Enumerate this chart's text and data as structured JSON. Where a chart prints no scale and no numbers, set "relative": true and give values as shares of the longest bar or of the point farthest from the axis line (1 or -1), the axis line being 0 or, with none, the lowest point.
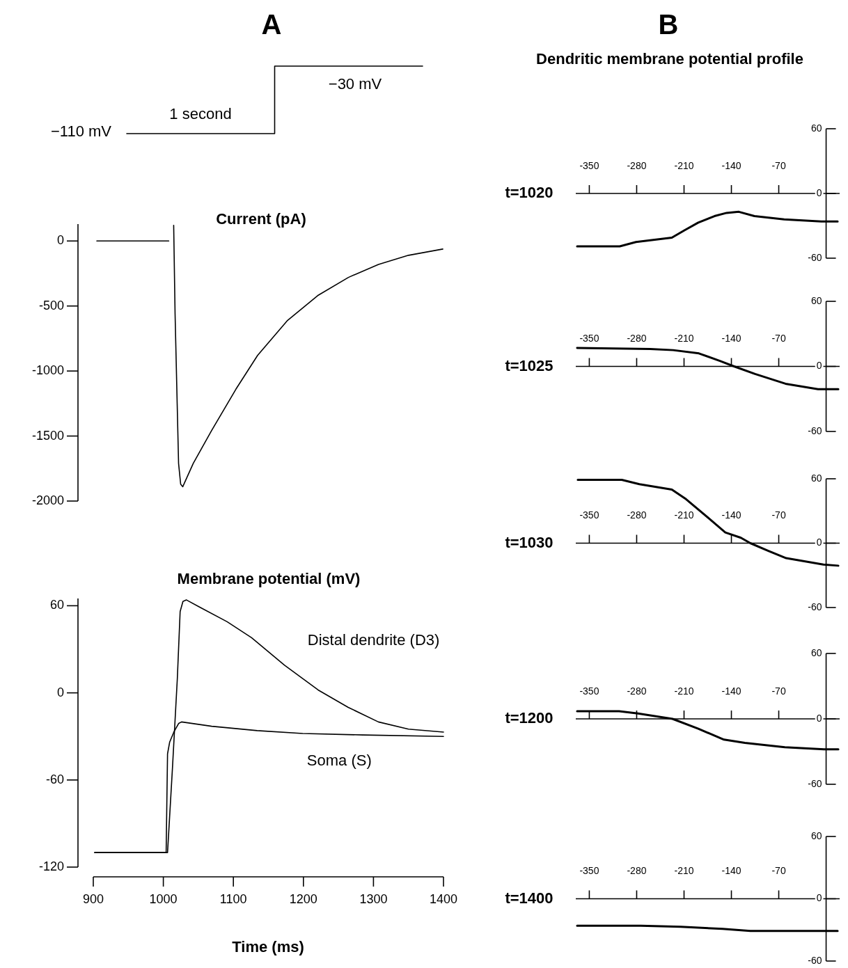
{
  "chart_data": [
    {
      "type": "step",
      "title": "A",
      "categories": [
        null,
        null,
        null
      ],
      "values": [
        0,
        1,
        1
      ],
      "relative": true,
      "color": "#000000",
      "annotations": [
        "−110 mV",
        "1 second",
        "−30 mV"
      ]
    },
    {
      "type": "line",
      "title": "Current (pA)",
      "x": [
        905,
        1008,
        1012,
        1015,
        1017,
        1020,
        1022,
        1025,
        1028,
        1043,
        1069,
        1104,
        1135,
        1178,
        1221,
        1265,
        1308,
        1351,
        1400
      ],
      "values": [
        0,
        0,
        null,
        120,
        -560,
        -1250,
        -1710,
        -1870,
        -1890,
        -1710,
        -1460,
        -1140,
        -880,
        -610,
        -420,
        -280,
        -180,
        -110,
        -62
      ],
      "color": "#000000",
      "xlim": [
        900,
        1400
      ],
      "ylim": [
        -2000,
        130
      ],
      "yticks": [
        0,
        -500,
        -1000,
        -1500,
        -2000
      ],
      "tick_labels": "y"
    },
    {
      "type": "line",
      "title": "Membrane potential (mV)",
      "xlabel": "Time (ms)",
      "xlim": [
        900,
        1400
      ],
      "xticks": [
        900,
        1000,
        1100,
        1200,
        1300,
        1400
      ],
      "ylim": [
        -120,
        65
      ],
      "yticks": [
        60,
        0,
        -60,
        -120
      ],
      "series": [
        {
          "name": "Distal dendrite (D3)",
          "color": "#000000",
          "x": [
            902,
            1004,
            1006,
            1013,
            1020,
            1024,
            1028,
            1033,
            1052,
            1091,
            1126,
            1173,
            1221,
            1264,
            1307,
            1350,
            1400
          ],
          "values": [
            -110,
            -110,
            -110,
            -52,
            10,
            56,
            63,
            64,
            59,
            49,
            38,
            19,
            2,
            -10,
            -20,
            -25,
            -27
          ]
        },
        {
          "name": "Soma (S)",
          "color": "#000000",
          "x": [
            902,
            1004,
            1006,
            1009,
            1015,
            1022,
            1026,
            1069,
            1134,
            1199,
            1285,
            1400
          ],
          "values": [
            -110,
            -110,
            -42,
            -34,
            -27,
            -21,
            -20,
            -23,
            -26,
            -28,
            -29,
            -30
          ]
        }
      ]
    },
    {
      "type": "line",
      "title": "B",
      "subtitle": "Dendritic membrane potential profile",
      "ylabel": "t=1020",
      "x": [
        -368,
        -305,
        -281,
        -228,
        -209,
        -189,
        -165,
        -147,
        -129,
        -106,
        -62,
        -7,
        17
      ],
      "values": [
        -49,
        -49,
        -45,
        -41,
        -34,
        -27,
        -21,
        -18,
        -17,
        -21,
        -24,
        -26,
        -26
      ],
      "color": "#000000",
      "xlim": [
        -370,
        20
      ],
      "xticks": [
        -350,
        -280,
        -210,
        -140,
        -70
      ],
      "ylim": [
        -60,
        60
      ],
      "yticks": [
        60,
        0,
        -60
      ]
    },
    {
      "type": "line",
      "ylabel": "t=1025",
      "x": [
        -368,
        -260,
        -226,
        -188,
        -157,
        -136,
        -105,
        -60,
        -12,
        18
      ],
      "values": [
        17,
        16,
        15,
        12,
        5,
        0,
        -7,
        -16,
        -21,
        -21
      ],
      "color": "#000000",
      "xlim": [
        -370,
        20
      ],
      "xticks": [
        -350,
        -280,
        -210,
        -140,
        -70
      ],
      "ylim": [
        -60,
        60
      ],
      "yticks": [
        60,
        0,
        -60
      ]
    },
    {
      "type": "line",
      "ylabel": "t=1030",
      "x": [
        -367,
        -302,
        -276,
        -228,
        -207,
        -173,
        -149,
        -126,
        -112,
        -86,
        -59,
        -4,
        18
      ],
      "values": [
        59,
        59,
        55,
        50,
        41,
        23,
        10,
        5,
        0,
        -7,
        -14,
        -20,
        -21
      ],
      "color": "#000000",
      "xlim": [
        -370,
        20
      ],
      "xticks": [
        -350,
        -280,
        -210,
        -140,
        -70
      ],
      "ylim": [
        -60,
        60
      ],
      "yticks": [
        60,
        0,
        -60
      ]
    },
    {
      "type": "line",
      "ylabel": "t=1200",
      "x": [
        -368,
        -306,
        -278,
        -227,
        -189,
        -151,
        -120,
        -61,
        -3,
        18
      ],
      "values": [
        7,
        7,
        5,
        0,
        -9,
        -19,
        -22,
        -26,
        -28,
        -28
      ],
      "color": "#000000",
      "xlim": [
        -370,
        20
      ],
      "xticks": [
        -350,
        -280,
        -210,
        -140,
        -70
      ],
      "ylim": [
        -60,
        60
      ],
      "yticks": [
        60,
        0,
        -60
      ]
    },
    {
      "type": "line",
      "ylabel": "t=1400",
      "x": [
        -368,
        -274,
        -215,
        -153,
        -112,
        17
      ],
      "values": [
        -26,
        -26,
        -27,
        -29,
        -31,
        -31
      ],
      "color": "#000000",
      "xlim": [
        -370,
        20
      ],
      "xticks": [
        -350,
        -280,
        -210,
        -140,
        -70
      ],
      "ylim": [
        -60,
        60
      ],
      "yticks": [
        60,
        0,
        -60
      ]
    }
  ]
}
